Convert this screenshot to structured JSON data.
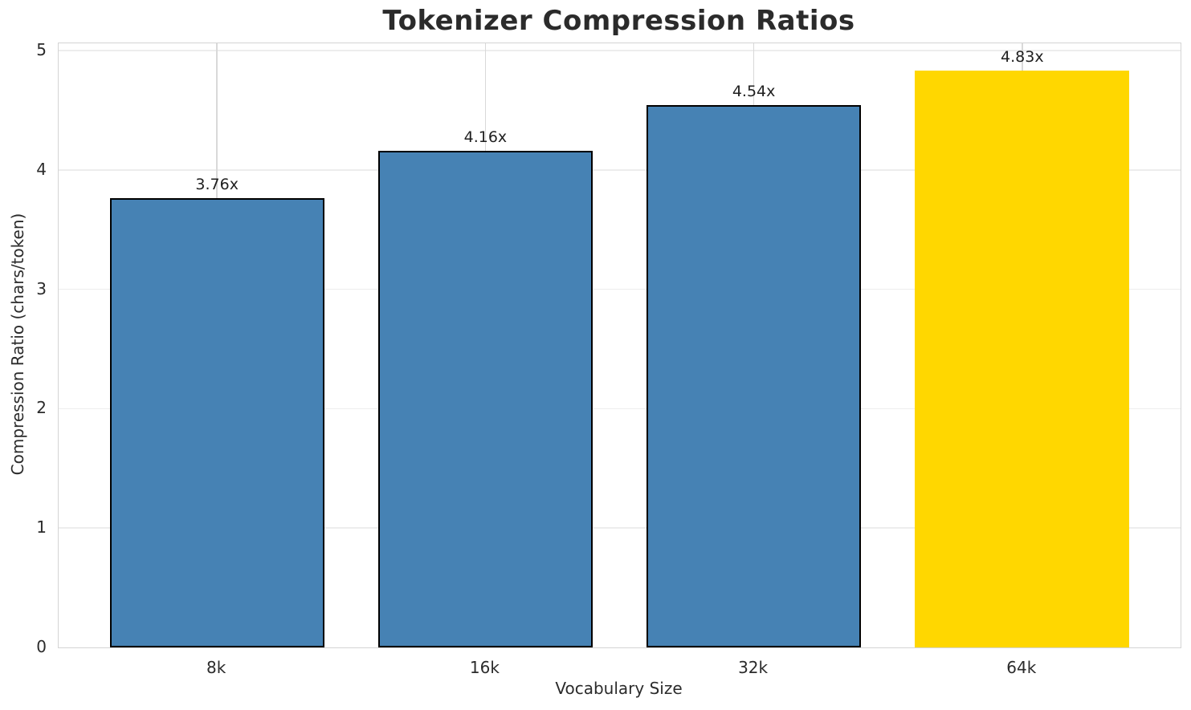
{
  "chart_data": {
    "type": "bar",
    "title": "Tokenizer Compression Ratios",
    "xlabel": "Vocabulary Size",
    "ylabel": "Compression Ratio (chars/token)",
    "categories": [
      "8k",
      "16k",
      "32k",
      "64k"
    ],
    "values": [
      3.76,
      4.16,
      4.54,
      4.83
    ],
    "value_labels": [
      "3.76x",
      "4.16x",
      "4.54x",
      "4.83x"
    ],
    "bar_colors": [
      "#4682B4",
      "#4682B4",
      "#4682B4",
      "#FFD700"
    ],
    "bar_edge_colors": [
      "#000000",
      "#000000",
      "#000000",
      "none"
    ],
    "highlight_category": "64k",
    "y_ticks": [
      0,
      1,
      2,
      3,
      4,
      5
    ],
    "ylim": [
      0,
      5.06
    ],
    "grid": true,
    "legend_position": "none"
  }
}
